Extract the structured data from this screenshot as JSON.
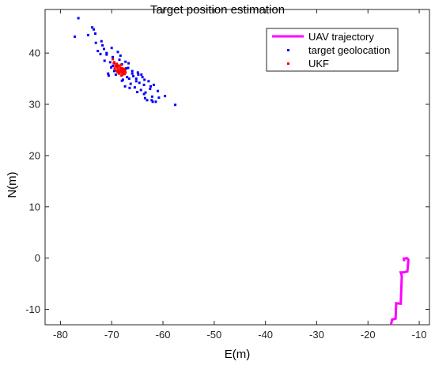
{
  "chart_data": {
    "type": "scatter",
    "title": "Target position estimation",
    "xlabel": "E(m)",
    "ylabel": "N(m)",
    "xlim": [
      -83,
      -8
    ],
    "ylim": [
      -13,
      48.5
    ],
    "xticks": [
      -80,
      -70,
      -60,
      -50,
      -40,
      -30,
      -20,
      -10
    ],
    "yticks": [
      -10,
      0,
      10,
      20,
      30,
      40
    ],
    "grid": false,
    "legend_position": "top-right",
    "series": [
      {
        "name": "UAV trajectory",
        "kind": "line",
        "color": "#ff00ff",
        "x": [
          -15.5,
          -15.3,
          -14.6,
          -14.5,
          -13.6,
          -13.4,
          -13.6,
          -13.1,
          -12.3,
          -12.1,
          -12.4,
          -13.0,
          -12.9
        ],
        "y": [
          -13,
          -12,
          -11.8,
          -8.8,
          -8.9,
          -3.5,
          -2.8,
          -2.8,
          -2.6,
          -0.3,
          0,
          -0.1,
          -0.6
        ]
      },
      {
        "name": "target geolocation",
        "kind": "points",
        "color": "#0000ff",
        "x": [
          -76.5,
          -77.2,
          -74.6,
          -73.8,
          -73.5,
          -73.1,
          -72.7,
          -72.2,
          -72.0,
          -71.8,
          -71.4,
          -71.0,
          -70.7,
          -70.3,
          -70.1,
          -69.8,
          -69.5,
          -69.2,
          -69.0,
          -68.8,
          -68.6,
          -68.3,
          -68.0,
          -67.8,
          -67.6,
          -67.3,
          -67.0,
          -66.8,
          -66.6,
          -66.3,
          -66.0,
          -65.8,
          -65.5,
          -65.2,
          -64.9,
          -64.6,
          -64.3,
          -64.0,
          -63.7,
          -63.4,
          -63.1,
          -62.8,
          -62.5,
          -62.1,
          -61.8,
          -61.4,
          -60.8,
          -59.6,
          -57.6,
          -71.5,
          -70.0,
          -68.5,
          -67.2,
          -66.0,
          -64.8,
          -63.6,
          -62.4,
          -73.2,
          -71.0,
          -69.5,
          -68.0,
          -66.5,
          -65.0,
          -63.5,
          -62.0,
          -69.8,
          -68.2,
          -66.7,
          -65.2,
          -63.7,
          -62.2,
          -70.6,
          -67.4,
          -64.2,
          -61.0
        ],
        "y": [
          46.8,
          43.2,
          43.5,
          45.0,
          44.6,
          42.0,
          40.4,
          39.8,
          42.3,
          41.5,
          38.5,
          39.7,
          36.0,
          38.2,
          37.2,
          39.2,
          38.0,
          35.8,
          37.5,
          40.2,
          36.2,
          39.5,
          37.8,
          34.8,
          36.8,
          38.3,
          35.3,
          37.1,
          35.0,
          34.0,
          36.0,
          35.5,
          33.3,
          35.0,
          36.2,
          34.2,
          32.8,
          35.3,
          33.8,
          32.3,
          30.8,
          34.5,
          33.0,
          31.5,
          33.8,
          30.5,
          31.3,
          31.6,
          29.9,
          40.8,
          41.0,
          38.7,
          37.0,
          36.5,
          35.8,
          34.8,
          33.5,
          43.8,
          40.0,
          36.5,
          34.6,
          33.2,
          32.4,
          31.2,
          30.5,
          37.5,
          36.5,
          38.0,
          34.5,
          32.0,
          30.8,
          35.6,
          33.5,
          35.8,
          32.6
        ]
      },
      {
        "name": "UKF",
        "kind": "points",
        "color": "#ff0000",
        "x": [
          -69.8,
          -69.5,
          -69.3,
          -69.0,
          -68.9,
          -68.7,
          -68.5,
          -68.4,
          -68.2,
          -68.0,
          -67.9,
          -67.7,
          -67.5,
          -67.4,
          -69.1,
          -68.8,
          -68.6,
          -68.3,
          -68.1,
          -67.8,
          -67.6,
          -69.4,
          -68.9,
          -68.5,
          -68.2,
          -67.9,
          -67.3,
          -69.6,
          -68.7,
          -68.0
        ],
        "y": [
          38.8,
          38.2,
          37.5,
          37.9,
          37.2,
          36.8,
          37.4,
          36.4,
          36.9,
          36.2,
          37.0,
          36.5,
          35.9,
          36.6,
          36.6,
          37.6,
          36.0,
          37.1,
          35.6,
          36.3,
          36.9,
          37.0,
          36.4,
          36.0,
          37.7,
          35.8,
          36.2,
          38.0,
          36.2,
          36.6
        ]
      }
    ]
  }
}
